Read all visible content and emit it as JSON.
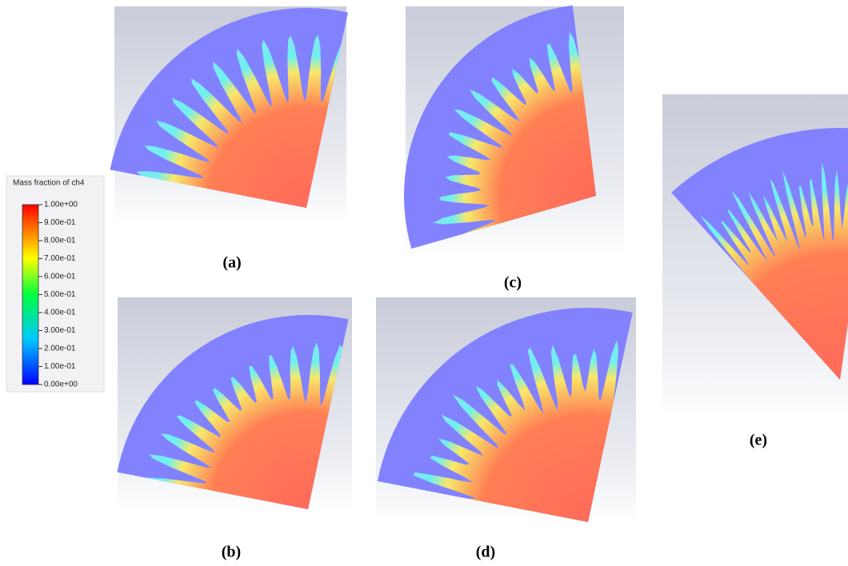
{
  "colorbar": {
    "title": "Mass fraction of ch4",
    "ticks": [
      {
        "value": 1,
        "label": "1.00e+00"
      },
      {
        "value": 0.9,
        "label": "9.00e-01"
      },
      {
        "value": 0.8,
        "label": "8.00e-01"
      },
      {
        "value": 0.7,
        "label": "7.00e-01"
      },
      {
        "value": 0.6,
        "label": "6.00e-01"
      },
      {
        "value": 0.5,
        "label": "5.00e-01"
      },
      {
        "value": 0.4,
        "label": "4.00e-01"
      },
      {
        "value": 0.3,
        "label": "3.00e-01"
      },
      {
        "value": 0.2,
        "label": "2.00e-01"
      },
      {
        "value": 0.1,
        "label": "1.00e-01"
      },
      {
        "value": 0,
        "label": "0.00e+00"
      }
    ]
  },
  "panels": [
    {
      "label": "(a)"
    },
    {
      "label": "(b)"
    },
    {
      "label": "(c)"
    },
    {
      "label": "(d)"
    },
    {
      "label": "(e)"
    }
  ]
}
